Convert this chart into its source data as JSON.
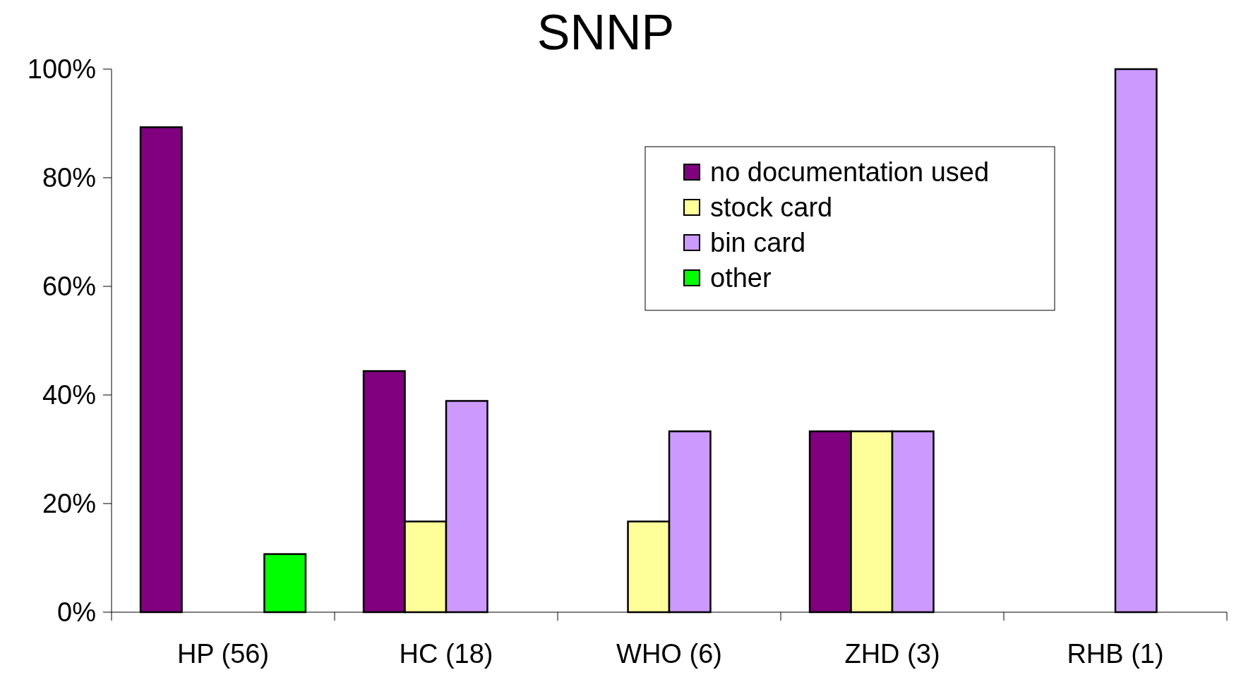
{
  "chart_data": {
    "type": "bar",
    "title": "SNNP",
    "categories": [
      "HP (56)",
      "HC (18)",
      "WHO (6)",
      "ZHD (3)",
      "RHB (1)"
    ],
    "series": [
      {
        "name": "no documentation used",
        "color": "#800080",
        "values": [
          89.3,
          44.4,
          null,
          33.3,
          null
        ]
      },
      {
        "name": "stock card",
        "color": "#ffff99",
        "values": [
          null,
          16.7,
          16.7,
          33.3,
          null
        ]
      },
      {
        "name": "bin card",
        "color": "#cc99ff",
        "values": [
          null,
          38.9,
          33.3,
          33.3,
          100
        ]
      },
      {
        "name": "other",
        "color": "#00ff00",
        "values": [
          10.7,
          null,
          null,
          null,
          null
        ]
      }
    ],
    "ylim": [
      0,
      100
    ],
    "yticks": [
      {
        "value": 0,
        "label": "0%"
      },
      {
        "value": 20,
        "label": "20%"
      },
      {
        "value": 40,
        "label": "40%"
      },
      {
        "value": 60,
        "label": "60%"
      },
      {
        "value": 80,
        "label": "80%"
      },
      {
        "value": 100,
        "label": "100%"
      }
    ],
    "grid": false,
    "legend": "top right"
  }
}
